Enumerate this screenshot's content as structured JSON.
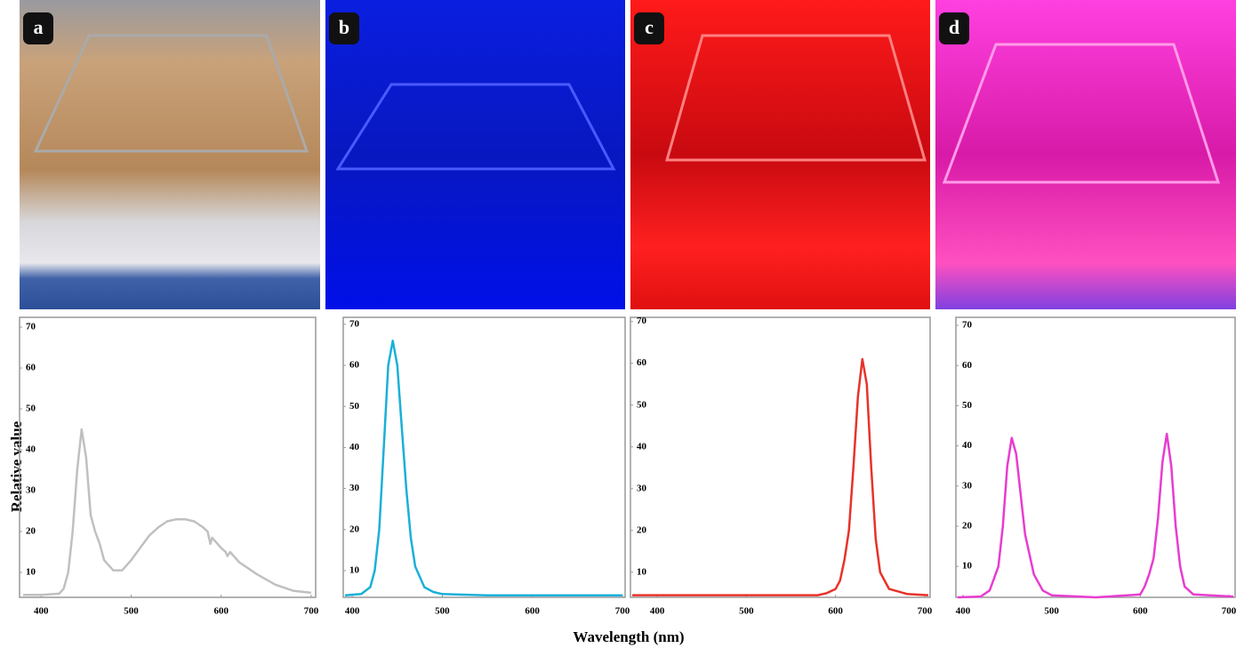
{
  "ylabel": "Relative value",
  "xlabel": "Wavelength (nm)",
  "chart_data": [
    {
      "type": "line",
      "label": "a",
      "x": [
        380,
        400,
        420,
        425,
        430,
        435,
        440,
        445,
        450,
        455,
        460,
        465,
        470,
        480,
        490,
        500,
        510,
        520,
        530,
        540,
        550,
        560,
        570,
        580,
        585,
        588,
        590,
        600,
        605,
        607,
        610,
        620,
        640,
        660,
        680,
        700
      ],
      "series": [
        {
          "color": "#c0c0c0",
          "values": [
            4.5,
            4.5,
            4.8,
            6,
            10,
            20,
            35,
            45,
            38,
            24,
            20,
            17,
            13,
            10.5,
            10.5,
            13,
            16,
            19,
            21,
            22.5,
            23,
            23,
            22.5,
            21,
            20,
            17,
            18.5,
            16,
            15,
            14,
            15,
            12.5,
            9.5,
            7,
            5.5,
            5
          ]
        }
      ],
      "xlim": [
        376,
        705
      ],
      "ylim": [
        3.9,
        72.4
      ],
      "xticks": [
        400,
        500,
        600,
        700
      ],
      "yticks": [
        10,
        20,
        30,
        40,
        50,
        60,
        70
      ]
    },
    {
      "type": "line",
      "label": "b",
      "x": [
        392,
        410,
        420,
        425,
        430,
        435,
        440,
        445,
        450,
        455,
        460,
        465,
        470,
        480,
        490,
        500,
        550,
        600,
        650,
        700
      ],
      "series": [
        {
          "color": "#1ab0d8",
          "values": [
            4,
            4.3,
            6,
            10,
            20,
            40,
            60,
            66,
            60,
            45,
            30,
            18,
            11,
            6,
            4.8,
            4.3,
            4,
            4,
            4,
            4
          ]
        }
      ],
      "xlim": [
        390,
        703
      ],
      "ylim": [
        3.5,
        71.7
      ],
      "xticks": [
        400,
        500,
        600,
        700
      ],
      "yticks": [
        10,
        20,
        30,
        40,
        50,
        60,
        70
      ]
    },
    {
      "type": "line",
      "label": "c",
      "x": [
        372,
        500,
        580,
        590,
        600,
        605,
        610,
        615,
        620,
        625,
        630,
        635,
        640,
        645,
        650,
        660,
        680,
        704
      ],
      "series": [
        {
          "color": "#e8322a",
          "values": [
            4.5,
            4.5,
            4.5,
            5,
            6,
            8,
            13,
            20,
            35,
            52,
            61,
            55,
            35,
            18,
            10,
            6,
            4.8,
            4.5
          ]
        }
      ],
      "xlim": [
        370,
        706
      ],
      "ylim": [
        4,
        71
      ],
      "xticks": [
        400,
        500,
        600,
        700
      ],
      "yticks": [
        10,
        20,
        30,
        40,
        50,
        60,
        70
      ]
    },
    {
      "type": "line",
      "label": "d",
      "x": [
        394,
        420,
        430,
        435,
        440,
        445,
        450,
        455,
        460,
        465,
        470,
        480,
        490,
        500,
        550,
        600,
        605,
        610,
        615,
        620,
        625,
        630,
        635,
        640,
        645,
        650,
        660,
        705
      ],
      "series": [
        {
          "color": "#e83cd0",
          "values": [
            2.3,
            2.5,
            4,
            7,
            10,
            20,
            35,
            42,
            38,
            28,
            18,
            8,
            4,
            2.8,
            2.3,
            3,
            5,
            8,
            12,
            22,
            36,
            43,
            35,
            20,
            10,
            5,
            3,
            2.5
          ]
        }
      ],
      "xlim": [
        392,
        707
      ],
      "ylim": [
        2.3,
        72
      ],
      "xticks": [
        400,
        500,
        600,
        700
      ],
      "yticks": [
        10,
        20,
        30,
        40,
        50,
        60,
        70
      ]
    }
  ]
}
